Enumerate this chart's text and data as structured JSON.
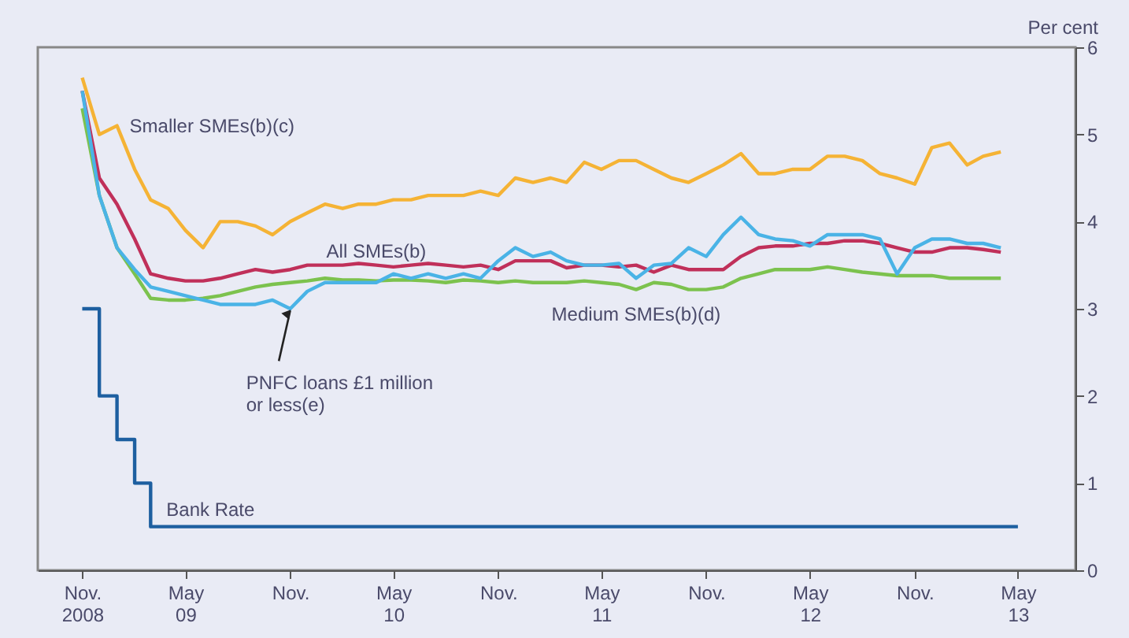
{
  "chart_data": {
    "type": "line",
    "ylabel": "Per cent",
    "x": [
      "2008-11",
      "2008-12",
      "2009-01",
      "2009-02",
      "2009-03",
      "2009-04",
      "2009-05",
      "2009-06",
      "2009-07",
      "2009-08",
      "2009-09",
      "2009-10",
      "2009-11",
      "2009-12",
      "2010-01",
      "2010-02",
      "2010-03",
      "2010-04",
      "2010-05",
      "2010-06",
      "2010-07",
      "2010-08",
      "2010-09",
      "2010-10",
      "2010-11",
      "2010-12",
      "2011-01",
      "2011-02",
      "2011-03",
      "2011-04",
      "2011-05",
      "2011-06",
      "2011-07",
      "2011-08",
      "2011-09",
      "2011-10",
      "2011-11",
      "2011-12",
      "2012-01",
      "2012-02",
      "2012-03",
      "2012-04",
      "2012-05",
      "2012-06",
      "2012-07",
      "2012-08",
      "2012-09",
      "2012-10",
      "2012-11",
      "2012-12",
      "2013-01",
      "2013-02",
      "2013-03",
      "2013-04"
    ],
    "series": [
      {
        "name": "Smaller SMEs(b)(c)",
        "color": "#f5b335",
        "values": [
          5.65,
          5.0,
          5.1,
          4.6,
          4.25,
          4.15,
          3.9,
          3.7,
          4.0,
          4.0,
          3.95,
          3.85,
          4.0,
          4.1,
          4.2,
          4.15,
          4.2,
          4.2,
          4.25,
          4.25,
          4.3,
          4.3,
          4.3,
          4.35,
          4.3,
          4.5,
          4.45,
          4.5,
          4.45,
          4.68,
          4.6,
          4.7,
          4.7,
          4.6,
          4.5,
          4.45,
          4.55,
          4.65,
          4.78,
          4.55,
          4.55,
          4.6,
          4.6,
          4.75,
          4.75,
          4.7,
          4.55,
          4.5,
          4.43,
          4.85,
          4.9,
          4.65,
          4.75,
          4.8
        ]
      },
      {
        "name": "All SMEs(b)",
        "color": "#c0305a",
        "values": [
          5.5,
          4.5,
          4.2,
          3.8,
          3.4,
          3.35,
          3.32,
          3.32,
          3.35,
          3.4,
          3.45,
          3.42,
          3.45,
          3.5,
          3.5,
          3.5,
          3.52,
          3.5,
          3.48,
          3.5,
          3.52,
          3.5,
          3.48,
          3.5,
          3.45,
          3.55,
          3.55,
          3.55,
          3.47,
          3.5,
          3.5,
          3.48,
          3.5,
          3.42,
          3.5,
          3.45,
          3.45,
          3.45,
          3.6,
          3.7,
          3.72,
          3.72,
          3.75,
          3.75,
          3.78,
          3.78,
          3.75,
          3.7,
          3.65,
          3.65,
          3.7,
          3.7,
          3.68,
          3.65
        ]
      },
      {
        "name": "Medium SMEs(b)(d)",
        "color": "#7cc24e",
        "values": [
          5.3,
          4.3,
          3.7,
          3.4,
          3.12,
          3.1,
          3.1,
          3.12,
          3.15,
          3.2,
          3.25,
          3.28,
          3.3,
          3.32,
          3.35,
          3.33,
          3.33,
          3.32,
          3.33,
          3.33,
          3.32,
          3.3,
          3.33,
          3.32,
          3.3,
          3.32,
          3.3,
          3.3,
          3.3,
          3.32,
          3.3,
          3.28,
          3.22,
          3.3,
          3.28,
          3.22,
          3.22,
          3.25,
          3.35,
          3.4,
          3.45,
          3.45,
          3.45,
          3.48,
          3.45,
          3.42,
          3.4,
          3.38,
          3.38,
          3.38,
          3.35,
          3.35,
          3.35,
          3.35
        ]
      },
      {
        "name": "PNFC loans £1 million or less(e)",
        "color": "#4ab3e6",
        "values": [
          5.5,
          4.3,
          3.7,
          3.45,
          3.25,
          3.2,
          3.15,
          3.1,
          3.05,
          3.05,
          3.05,
          3.1,
          3.0,
          3.2,
          3.3,
          3.3,
          3.3,
          3.3,
          3.4,
          3.35,
          3.4,
          3.35,
          3.4,
          3.35,
          3.55,
          3.7,
          3.6,
          3.65,
          3.55,
          3.5,
          3.5,
          3.52,
          3.35,
          3.5,
          3.52,
          3.7,
          3.6,
          3.85,
          4.05,
          3.85,
          3.8,
          3.78,
          3.72,
          3.85,
          3.85,
          3.85,
          3.8,
          3.4,
          3.7,
          3.8,
          3.8,
          3.75,
          3.75,
          3.7
        ]
      },
      {
        "name": "Bank Rate",
        "type": "step",
        "color": "#1d5fa0",
        "x": [
          "2008-11",
          "2008-12",
          "2009-01",
          "2009-02",
          "2009-03",
          "2013-05"
        ],
        "values": [
          3,
          2,
          1.5,
          1,
          0.5,
          0.5
        ]
      }
    ],
    "xlim": [
      "2008-08-15",
      "2013-08-10"
    ],
    "xticks": [
      {
        "value": "2008-11",
        "label": "Nov.\n2008"
      },
      {
        "value": "2009-05",
        "label": "May\n09"
      },
      {
        "value": "2009-11",
        "label": "Nov."
      },
      {
        "value": "2010-05",
        "label": "May\n10"
      },
      {
        "value": "2010-11",
        "label": "Nov."
      },
      {
        "value": "2011-05",
        "label": "May\n11"
      },
      {
        "value": "2011-11",
        "label": "Nov."
      },
      {
        "value": "2012-05",
        "label": "May\n12"
      },
      {
        "value": "2012-11",
        "label": "Nov."
      },
      {
        "value": "2013-05",
        "label": "May\n13"
      }
    ],
    "ylim": [
      0,
      6
    ],
    "yticks": [
      0,
      1,
      2,
      3,
      4,
      5,
      6
    ],
    "grid": false,
    "legend": false,
    "marker": "none",
    "line_style": "solid"
  }
}
